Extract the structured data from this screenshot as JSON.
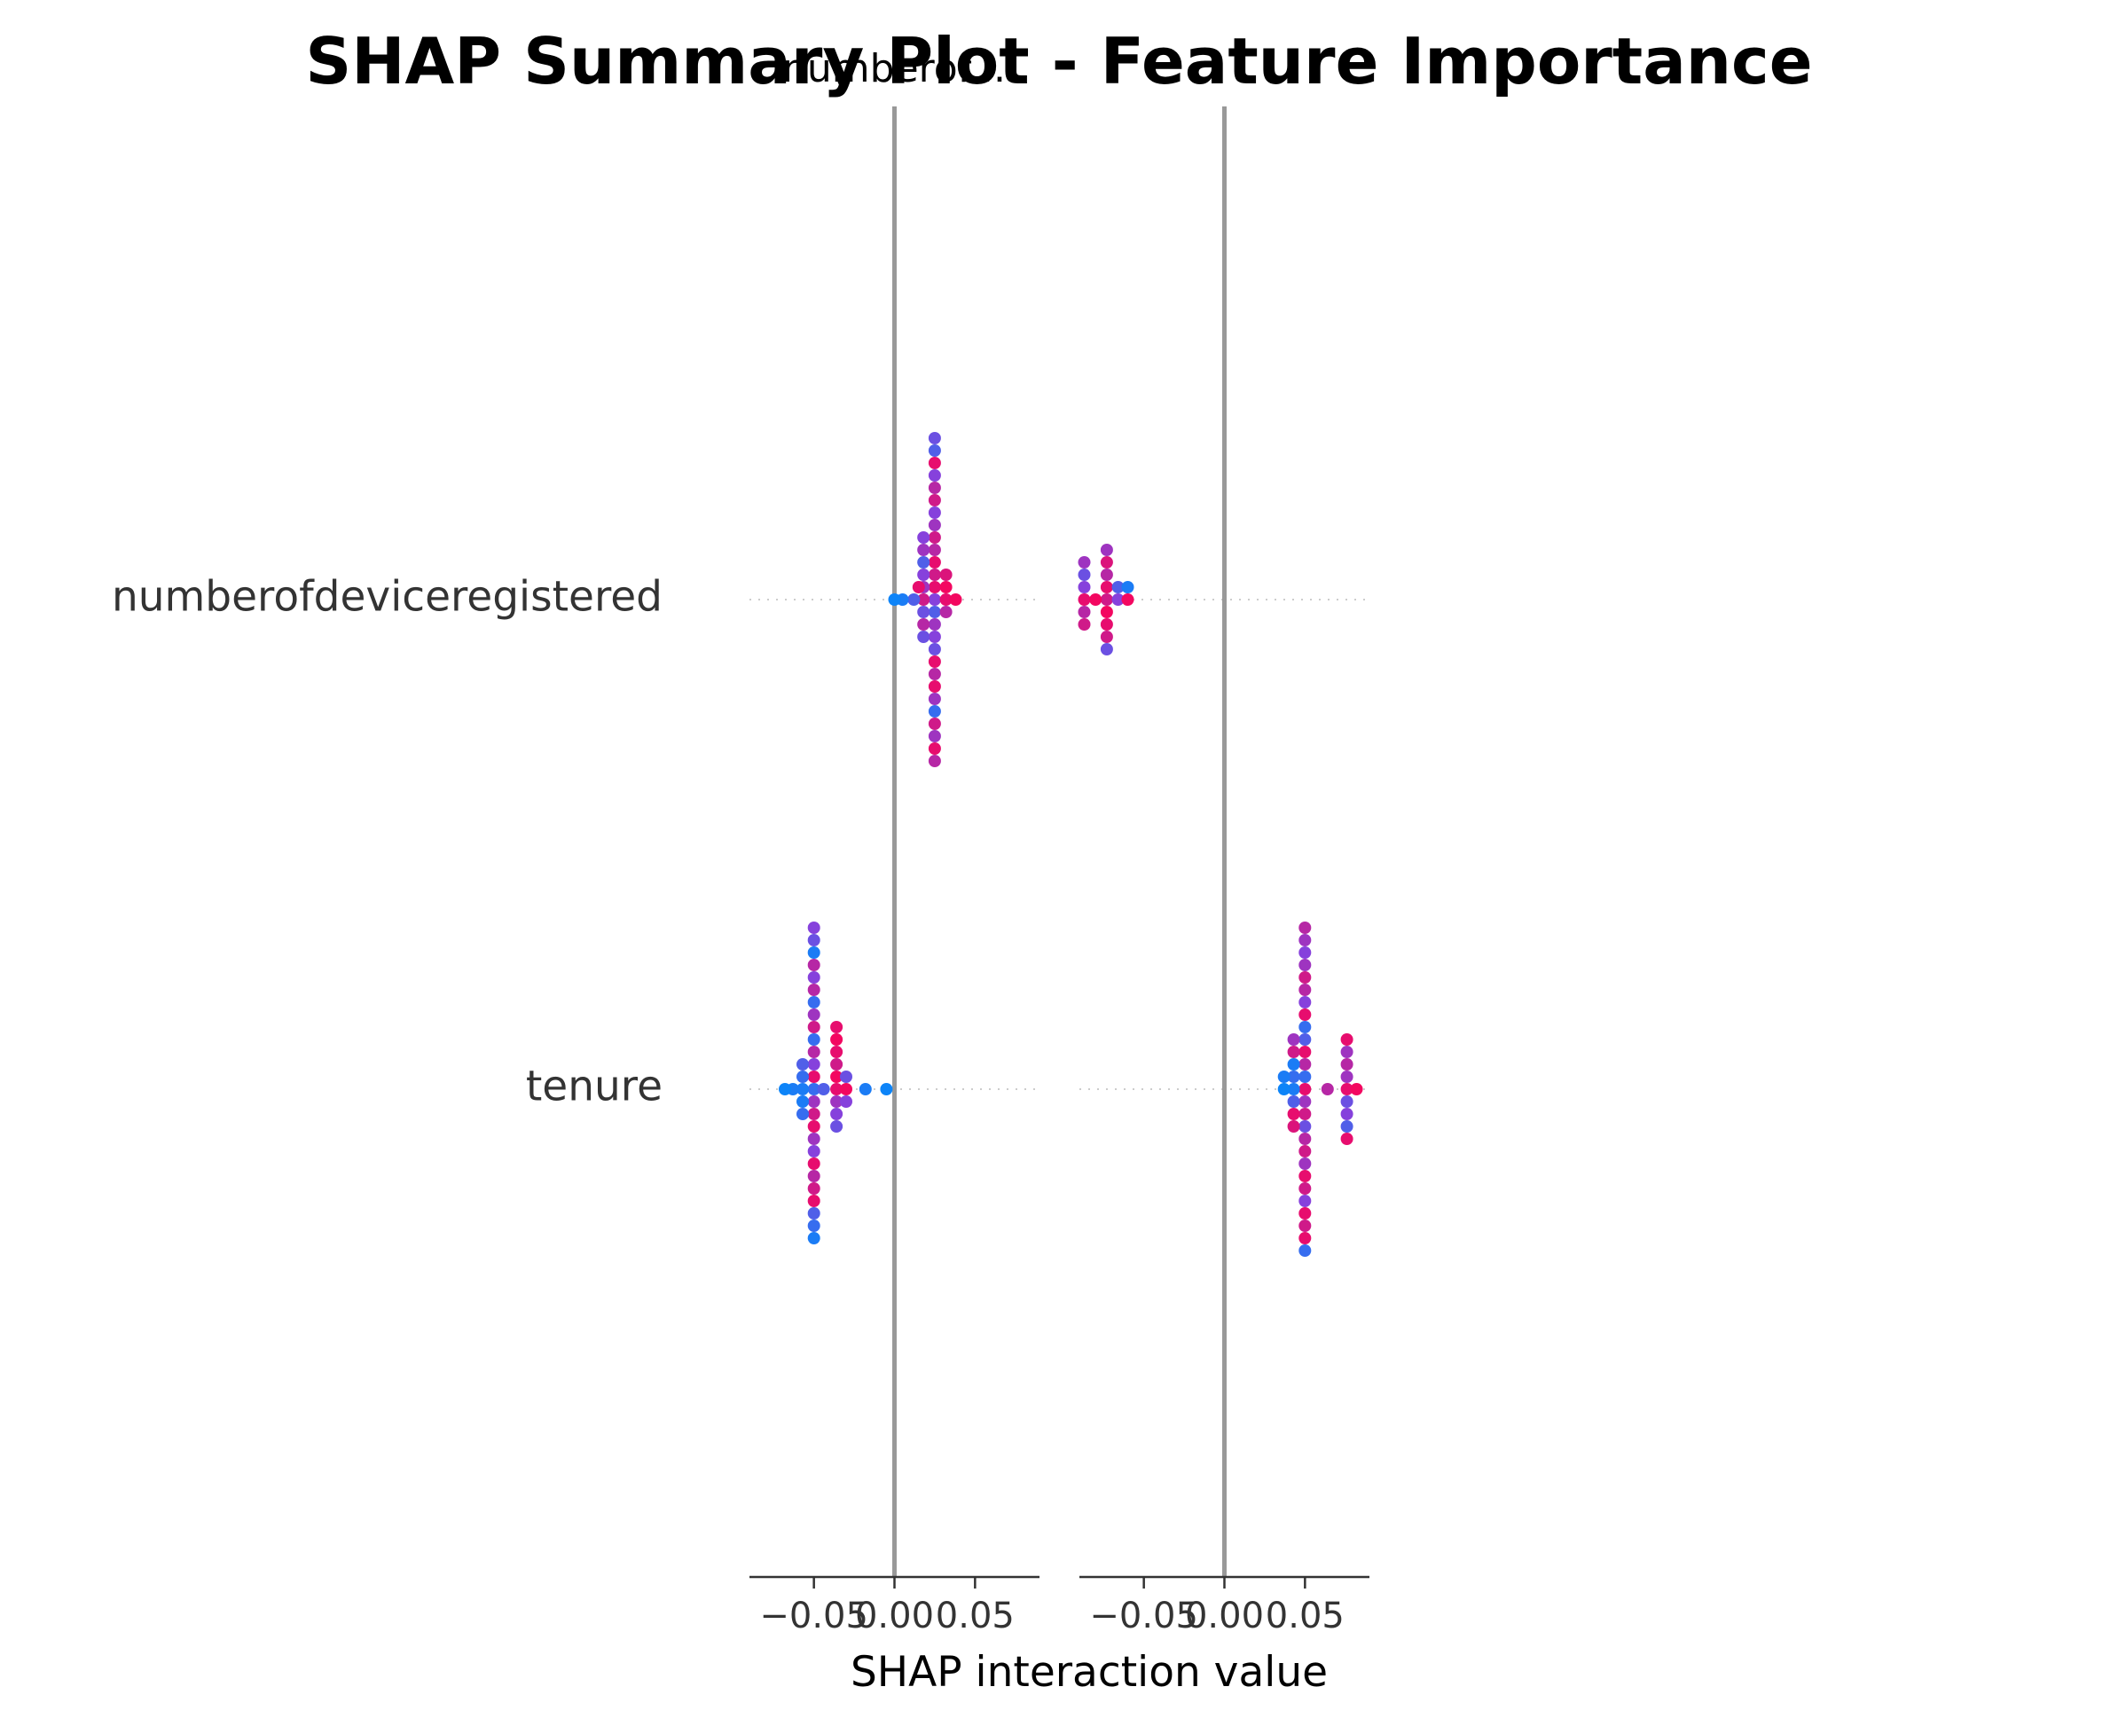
{
  "chart_data": {
    "type": "scatter",
    "title": "SHAP Summary Plot - Feature Importance",
    "subtitle": "numberof...",
    "xlabel": "SHAP interaction value",
    "features": [
      "numberofdeviceregistered",
      "tenure"
    ],
    "panel_xlim": [
      -0.09,
      0.09
    ],
    "panel_ticks": [
      "−0.05",
      "0.00",
      "0.05"
    ],
    "panel_tick_values": [
      -0.05,
      0.0,
      0.05
    ],
    "colors": {
      "low": "#008bfb",
      "high": "#ff0052",
      "axis": "#333333",
      "zero_line": "#999999",
      "grid": "#cccccc"
    },
    "panels": [
      {
        "rows": [
          {
            "feature": "numberofdeviceregistered",
            "points": [
              [
                0.025,
                0.0,
                0.5
              ],
              [
                0.025,
                1,
                0.9
              ],
              [
                0.025,
                -1,
                0.3
              ],
              [
                0.025,
                2,
                0.8
              ],
              [
                0.025,
                -2,
                0.6
              ],
              [
                0.025,
                3,
                0.9
              ],
              [
                0.025,
                -3,
                0.5
              ],
              [
                0.025,
                4,
                0.7
              ],
              [
                0.025,
                -4,
                0.4
              ],
              [
                0.025,
                5,
                0.8
              ],
              [
                0.025,
                -5,
                0.9
              ],
              [
                0.025,
                6,
                0.6
              ],
              [
                0.025,
                -6,
                0.7
              ],
              [
                0.025,
                7,
                0.5
              ],
              [
                0.025,
                -7,
                0.9
              ],
              [
                0.025,
                8,
                0.8
              ],
              [
                0.025,
                -8,
                0.6
              ],
              [
                0.025,
                9,
                0.7
              ],
              [
                0.025,
                -9,
                0.2
              ],
              [
                0.025,
                10,
                0.5
              ],
              [
                0.025,
                -10,
                0.8
              ],
              [
                0.025,
                11,
                0.9
              ],
              [
                0.025,
                -11,
                0.6
              ],
              [
                0.025,
                12,
                0.3
              ],
              [
                0.025,
                -12,
                0.9
              ],
              [
                0.025,
                13,
                0.4
              ],
              [
                0.025,
                -13,
                0.7
              ],
              [
                0.018,
                0,
                0.8
              ],
              [
                0.018,
                1,
                0.6
              ],
              [
                0.018,
                -1,
                0.4
              ],
              [
                0.018,
                2,
                0.5
              ],
              [
                0.018,
                -2,
                0.7
              ],
              [
                0.018,
                3,
                0.3
              ],
              [
                0.018,
                -3,
                0.4
              ],
              [
                0.018,
                4,
                0.6
              ],
              [
                0.018,
                5,
                0.5
              ],
              [
                0.032,
                0,
                0.9
              ],
              [
                0.032,
                1,
                0.95
              ],
              [
                0.032,
                -1,
                0.7
              ],
              [
                0.032,
                2,
                0.85
              ],
              [
                0.038,
                0,
                0.95
              ],
              [
                0.012,
                0,
                0.3
              ],
              [
                0.005,
                0,
                0.1
              ],
              [
                0.0,
                0,
                0.05
              ],
              [
                0.015,
                1,
                0.9
              ]
            ]
          },
          {
            "feature": "tenure",
            "points": [
              [
                -0.05,
                0,
                0.2
              ],
              [
                -0.05,
                1,
                0.9
              ],
              [
                -0.05,
                -1,
                0.6
              ],
              [
                -0.05,
                2,
                0.5
              ],
              [
                -0.05,
                -2,
                0.8
              ],
              [
                -0.05,
                3,
                0.7
              ],
              [
                -0.05,
                -3,
                0.9
              ],
              [
                -0.05,
                4,
                0.2
              ],
              [
                -0.05,
                -4,
                0.6
              ],
              [
                -0.05,
                5,
                0.8
              ],
              [
                -0.05,
                -5,
                0.5
              ],
              [
                -0.05,
                6,
                0.6
              ],
              [
                -0.05,
                -6,
                0.9
              ],
              [
                -0.05,
                7,
                0.2
              ],
              [
                -0.05,
                -7,
                0.7
              ],
              [
                -0.05,
                8,
                0.7
              ],
              [
                -0.05,
                -8,
                0.8
              ],
              [
                -0.05,
                9,
                0.5
              ],
              [
                -0.05,
                -9,
                0.9
              ],
              [
                -0.05,
                10,
                0.7
              ],
              [
                -0.05,
                -10,
                0.3
              ],
              [
                -0.05,
                11,
                0.1
              ],
              [
                -0.05,
                -11,
                0.2
              ],
              [
                -0.05,
                12,
                0.4
              ],
              [
                -0.05,
                -12,
                0.1
              ],
              [
                -0.05,
                13,
                0.5
              ],
              [
                -0.057,
                0,
                0.1
              ],
              [
                -0.057,
                1,
                0.2
              ],
              [
                -0.057,
                -1,
                0.1
              ],
              [
                -0.057,
                2,
                0.3
              ],
              [
                -0.057,
                -2,
                0.2
              ],
              [
                -0.063,
                0,
                0.1
              ],
              [
                -0.068,
                0,
                0.05
              ],
              [
                -0.044,
                0,
                0.3
              ],
              [
                -0.036,
                0,
                0.9
              ],
              [
                -0.036,
                1,
                0.95
              ],
              [
                -0.036,
                -1,
                0.6
              ],
              [
                -0.036,
                2,
                0.8
              ],
              [
                -0.036,
                -2,
                0.5
              ],
              [
                -0.036,
                3,
                0.9
              ],
              [
                -0.036,
                -3,
                0.4
              ],
              [
                -0.036,
                4,
                0.95
              ],
              [
                -0.036,
                5,
                0.9
              ],
              [
                -0.03,
                0,
                0.95
              ],
              [
                -0.03,
                1,
                0.4
              ],
              [
                -0.03,
                -1,
                0.5
              ],
              [
                -0.018,
                0,
                0.1
              ],
              [
                -0.005,
                0,
                0.05
              ]
            ]
          }
        ]
      },
      {
        "rows": [
          {
            "feature": "numberofdeviceregistered",
            "points": [
              [
                -0.087,
                0,
                0.9
              ],
              [
                -0.087,
                1,
                0.5
              ],
              [
                -0.087,
                -1,
                0.7
              ],
              [
                -0.087,
                2,
                0.4
              ],
              [
                -0.087,
                -2,
                0.8
              ],
              [
                -0.087,
                3,
                0.6
              ],
              [
                -0.073,
                0,
                0.8
              ],
              [
                -0.073,
                1,
                0.9
              ],
              [
                -0.073,
                -1,
                0.95
              ],
              [
                -0.073,
                2,
                0.7
              ],
              [
                -0.073,
                -2,
                0.9
              ],
              [
                -0.073,
                3,
                0.85
              ],
              [
                -0.073,
                -3,
                0.8
              ],
              [
                -0.073,
                4,
                0.6
              ],
              [
                -0.073,
                -4,
                0.4
              ],
              [
                -0.08,
                0,
                0.95
              ],
              [
                -0.066,
                0,
                0.5
              ],
              [
                -0.066,
                1,
                0.3
              ],
              [
                -0.06,
                0,
                0.95
              ],
              [
                -0.06,
                1,
                0.1
              ]
            ]
          },
          {
            "feature": "tenure",
            "points": [
              [
                0.05,
                0,
                0.9
              ],
              [
                0.05,
                1,
                0.2
              ],
              [
                0.05,
                -1,
                0.6
              ],
              [
                0.05,
                2,
                0.7
              ],
              [
                0.05,
                -2,
                0.8
              ],
              [
                0.05,
                3,
                0.9
              ],
              [
                0.05,
                -3,
                0.4
              ],
              [
                0.05,
                4,
                0.3
              ],
              [
                0.05,
                -4,
                0.7
              ],
              [
                0.05,
                5,
                0.2
              ],
              [
                0.05,
                -5,
                0.8
              ],
              [
                0.05,
                6,
                0.9
              ],
              [
                0.05,
                -6,
                0.6
              ],
              [
                0.05,
                7,
                0.5
              ],
              [
                0.05,
                -7,
                0.9
              ],
              [
                0.05,
                8,
                0.7
              ],
              [
                0.05,
                -8,
                0.8
              ],
              [
                0.05,
                9,
                0.8
              ],
              [
                0.05,
                -9,
                0.5
              ],
              [
                0.05,
                10,
                0.6
              ],
              [
                0.05,
                -10,
                0.9
              ],
              [
                0.05,
                11,
                0.5
              ],
              [
                0.05,
                -11,
                0.8
              ],
              [
                0.05,
                12,
                0.6
              ],
              [
                0.05,
                -12,
                0.9
              ],
              [
                0.05,
                13,
                0.7
              ],
              [
                0.05,
                -13,
                0.2
              ],
              [
                0.043,
                0,
                0.1
              ],
              [
                0.043,
                1,
                0.2
              ],
              [
                0.043,
                -1,
                0.3
              ],
              [
                0.043,
                2,
                0.1
              ],
              [
                0.043,
                -2,
                0.9
              ],
              [
                0.043,
                3,
                0.8
              ],
              [
                0.043,
                -3,
                0.85
              ],
              [
                0.043,
                4,
                0.6
              ],
              [
                0.037,
                0,
                0.05
              ],
              [
                0.037,
                1,
                0.1
              ],
              [
                0.064,
                0,
                0.7
              ],
              [
                0.076,
                0,
                0.9
              ],
              [
                0.076,
                1,
                0.6
              ],
              [
                0.076,
                -1,
                0.4
              ],
              [
                0.076,
                2,
                0.7
              ],
              [
                0.076,
                -2,
                0.5
              ],
              [
                0.076,
                3,
                0.6
              ],
              [
                0.076,
                -3,
                0.3
              ],
              [
                0.076,
                4,
                0.9
              ],
              [
                0.076,
                -4,
                0.9
              ],
              [
                0.082,
                0,
                0.95
              ]
            ]
          }
        ]
      }
    ]
  }
}
